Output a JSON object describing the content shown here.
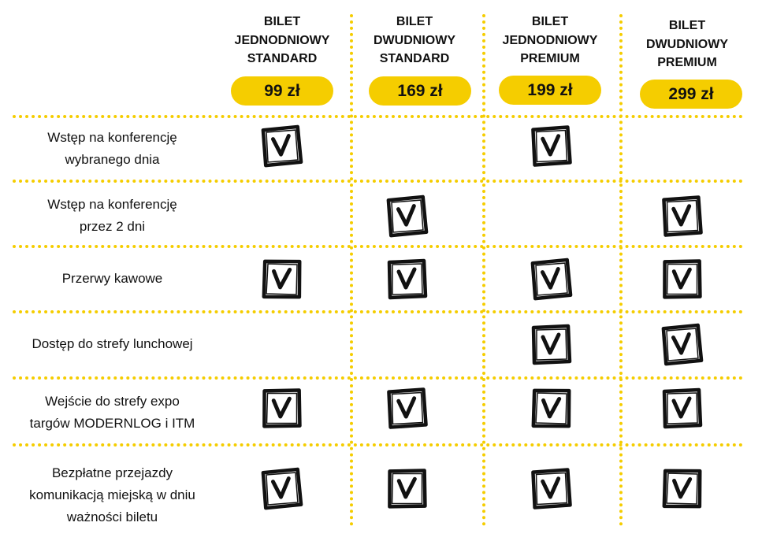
{
  "tickets": [
    {
      "name_lines": [
        "BILET",
        "JEDNODNIOWY",
        "STANDARD"
      ],
      "price": "99 zł"
    },
    {
      "name_lines": [
        "BILET",
        "DWUDNIOWY",
        "STANDARD"
      ],
      "price": "169 zł"
    },
    {
      "name_lines": [
        "BILET",
        "JEDNODNIOWY",
        "PREMIUM"
      ],
      "price": "199 zł"
    },
    {
      "name_lines": [
        "BILET",
        "DWUDNIOWY",
        "PREMIUM"
      ],
      "price": "299 zł"
    }
  ],
  "features": [
    {
      "lines": [
        "Wstęp na konferencję",
        "wybranego dnia"
      ],
      "included": [
        true,
        false,
        true,
        false
      ]
    },
    {
      "lines": [
        "Wstęp na konferencję",
        "przez 2 dni"
      ],
      "included": [
        false,
        true,
        false,
        true
      ]
    },
    {
      "lines": [
        "Przerwy kawowe"
      ],
      "included": [
        true,
        true,
        true,
        true
      ]
    },
    {
      "lines": [
        "Dostęp do strefy lunchowej"
      ],
      "included": [
        false,
        false,
        true,
        true
      ]
    },
    {
      "lines": [
        "Wejście do strefy expo",
        "targów MODERNLOG i ITM"
      ],
      "included": [
        true,
        true,
        true,
        true
      ]
    },
    {
      "lines": [
        "Bezpłatne przejazdy",
        "komunikacją miejską w dniu",
        "ważności biletu"
      ],
      "included": [
        true,
        true,
        true,
        true
      ]
    }
  ],
  "icons": {
    "check": "checkbox-checked-icon"
  },
  "colors": {
    "accent": "#f5cd00",
    "text": "#111111"
  }
}
